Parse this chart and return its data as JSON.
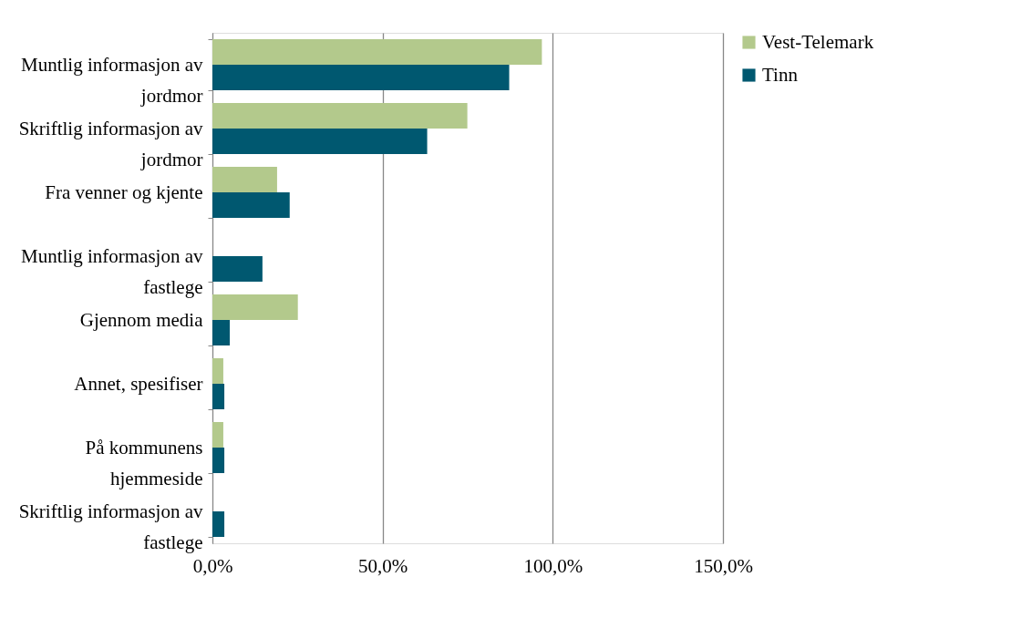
{
  "chart_data": {
    "type": "bar",
    "orientation": "horizontal",
    "categories": [
      "Muntlig informasjon av jordmor",
      "Skriftlig informasjon av jordmor",
      "Fra venner og kjente",
      "Muntlig informasjon av fastlege",
      "Gjennom media",
      "Annet, spesifiser",
      "På kommunens hjemmeside",
      "Skriftlig informasjon av fastlege"
    ],
    "series": [
      {
        "name": "Vest-Telemark",
        "color": "#b3c98c",
        "values": [
          96.8,
          74.9,
          19.0,
          0,
          25.1,
          3.2,
          3.2,
          0
        ]
      },
      {
        "name": "Tinn",
        "color": "#005870",
        "values": [
          87.2,
          63.1,
          22.7,
          14.7,
          5.1,
          3.5,
          3.5,
          3.5
        ]
      }
    ],
    "xlim": [
      0,
      150
    ],
    "xticks": [
      {
        "value": 0,
        "label": "0,0%"
      },
      {
        "value": 50,
        "label": "50,0%"
      },
      {
        "value": 100,
        "label": "100,0%"
      },
      {
        "value": 150,
        "label": "150,0%"
      }
    ],
    "grid": "x",
    "legend": "right"
  }
}
